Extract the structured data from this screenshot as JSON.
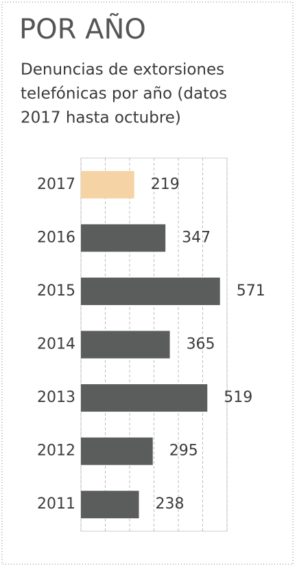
{
  "chart_data": {
    "type": "bar",
    "orientation": "horizontal",
    "title": "POR AÑO",
    "subtitle": [
      "Denuncias de extorsiones",
      "telefónicas por año (datos",
      "2017 hasta octubre)"
    ],
    "categories": [
      "2017",
      "2016",
      "2015",
      "2014",
      "2013",
      "2012",
      "2011"
    ],
    "values": [
      219,
      347,
      571,
      365,
      519,
      295,
      238
    ],
    "colors": [
      "#f6d3a4",
      "#5b5d5c",
      "#5b5d5c",
      "#5b5d5c",
      "#5b5d5c",
      "#5b5d5c",
      "#5b5d5c"
    ],
    "xlim": [
      0,
      600
    ],
    "xticks": [
      0,
      100,
      200,
      300,
      400,
      500,
      600
    ],
    "grid": true
  }
}
